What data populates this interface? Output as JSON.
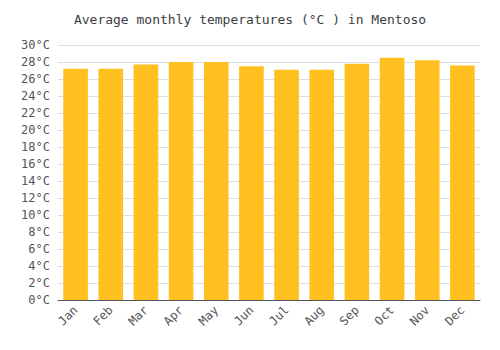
{
  "chart_data": {
    "type": "bar",
    "title": "Average monthly temperatures (°C ) in Mentoso",
    "categories": [
      "Jan",
      "Feb",
      "Mar",
      "Apr",
      "May",
      "Jun",
      "Jul",
      "Aug",
      "Sep",
      "Oct",
      "Nov",
      "Dec"
    ],
    "values": [
      27.2,
      27.2,
      27.7,
      28.0,
      28.0,
      27.5,
      27.1,
      27.1,
      27.8,
      28.5,
      28.2,
      27.6
    ],
    "color": "#FFC020",
    "ylim": [
      0,
      30
    ],
    "yticks": [
      {
        "value": 0,
        "label": "0°C"
      },
      {
        "value": 2,
        "label": "2°C"
      },
      {
        "value": 4,
        "label": "4°C"
      },
      {
        "value": 6,
        "label": "6°C"
      },
      {
        "value": 8,
        "label": "8°C"
      },
      {
        "value": 10,
        "label": "10°C"
      },
      {
        "value": 12,
        "label": "12°C"
      },
      {
        "value": 14,
        "label": "14°C"
      },
      {
        "value": 16,
        "label": "16°C"
      },
      {
        "value": 18,
        "label": "18°C"
      },
      {
        "value": 20,
        "label": "20°C"
      },
      {
        "value": 22,
        "label": "22°C"
      },
      {
        "value": 24,
        "label": "24°C"
      },
      {
        "value": 26,
        "label": "26°C"
      },
      {
        "value": 28,
        "label": "28°C"
      },
      {
        "value": 30,
        "label": "30°C"
      }
    ],
    "grid": true
  }
}
